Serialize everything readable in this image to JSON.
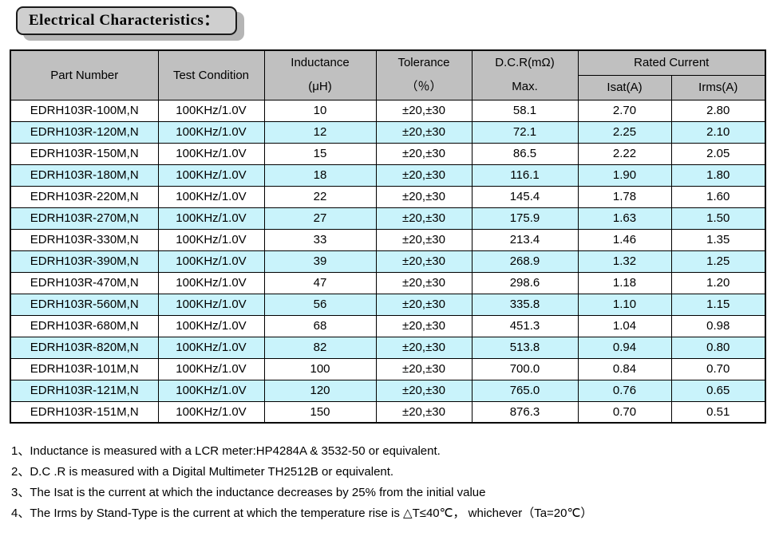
{
  "title": "Electrical Characteristics：",
  "table": {
    "header": {
      "part_number": "Part Number",
      "test_condition": "Test Condition",
      "inductance": [
        "Inductance",
        "(μH)"
      ],
      "tolerance": [
        "Tolerance",
        "（％）"
      ],
      "dcr": [
        "D.C.R(mΩ)",
        "Max."
      ],
      "rated_current": "Rated Current",
      "isat": "Isat(A)",
      "irms": "Irms(A)"
    },
    "column_keys": [
      "part",
      "cond",
      "ind",
      "tol",
      "dcr",
      "isat",
      "irms"
    ],
    "rows": [
      {
        "part": "EDRH103R-100M,N",
        "cond": "100KHz/1.0V",
        "ind": "10",
        "tol": "±20,±30",
        "dcr": "58.1",
        "isat": "2.70",
        "irms": "2.80"
      },
      {
        "part": "EDRH103R-120M,N",
        "cond": "100KHz/1.0V",
        "ind": "12",
        "tol": "±20,±30",
        "dcr": "72.1",
        "isat": "2.25",
        "irms": "2.10"
      },
      {
        "part": "EDRH103R-150M,N",
        "cond": "100KHz/1.0V",
        "ind": "15",
        "tol": "±20,±30",
        "dcr": "86.5",
        "isat": "2.22",
        "irms": "2.05"
      },
      {
        "part": "EDRH103R-180M,N",
        "cond": "100KHz/1.0V",
        "ind": "18",
        "tol": "±20,±30",
        "dcr": "116.1",
        "isat": "1.90",
        "irms": "1.80"
      },
      {
        "part": "EDRH103R-220M,N",
        "cond": "100KHz/1.0V",
        "ind": "22",
        "tol": "±20,±30",
        "dcr": "145.4",
        "isat": "1.78",
        "irms": "1.60"
      },
      {
        "part": "EDRH103R-270M,N",
        "cond": "100KHz/1.0V",
        "ind": "27",
        "tol": "±20,±30",
        "dcr": "175.9",
        "isat": "1.63",
        "irms": "1.50"
      },
      {
        "part": "EDRH103R-330M,N",
        "cond": "100KHz/1.0V",
        "ind": "33",
        "tol": "±20,±30",
        "dcr": "213.4",
        "isat": "1.46",
        "irms": "1.35"
      },
      {
        "part": "EDRH103R-390M,N",
        "cond": "100KHz/1.0V",
        "ind": "39",
        "tol": "±20,±30",
        "dcr": "268.9",
        "isat": "1.32",
        "irms": "1.25"
      },
      {
        "part": "EDRH103R-470M,N",
        "cond": "100KHz/1.0V",
        "ind": "47",
        "tol": "±20,±30",
        "dcr": "298.6",
        "isat": "1.18",
        "irms": "1.20"
      },
      {
        "part": "EDRH103R-560M,N",
        "cond": "100KHz/1.0V",
        "ind": "56",
        "tol": "±20,±30",
        "dcr": "335.8",
        "isat": "1.10",
        "irms": "1.15"
      },
      {
        "part": "EDRH103R-680M,N",
        "cond": "100KHz/1.0V",
        "ind": "68",
        "tol": "±20,±30",
        "dcr": "451.3",
        "isat": "1.04",
        "irms": "0.98"
      },
      {
        "part": "EDRH103R-820M,N",
        "cond": "100KHz/1.0V",
        "ind": "82",
        "tol": "±20,±30",
        "dcr": "513.8",
        "isat": "0.94",
        "irms": "0.80"
      },
      {
        "part": "EDRH103R-101M,N",
        "cond": "100KHz/1.0V",
        "ind": "100",
        "tol": "±20,±30",
        "dcr": "700.0",
        "isat": "0.84",
        "irms": "0.70"
      },
      {
        "part": "EDRH103R-121M,N",
        "cond": "100KHz/1.0V",
        "ind": "120",
        "tol": "±20,±30",
        "dcr": "765.0",
        "isat": "0.76",
        "irms": "0.65"
      },
      {
        "part": "EDRH103R-151M,N",
        "cond": "100KHz/1.0V",
        "ind": "150",
        "tol": "±20,±30",
        "dcr": "876.3",
        "isat": "0.70",
        "irms": "0.51"
      }
    ]
  },
  "notes": [
    "1、Inductance is measured with a LCR meter:HP4284A & 3532-50 or equivalent.",
    "2、D.C .R is measured with a Digital Multimeter TH2512B or equivalent.",
    "3、The Isat is the current at which the inductance decreases by 25% from the initial value",
    "4、The Irms by Stand-Type is the current at which the temperature rise is △T≤40℃， whichever（Ta=20℃）"
  ],
  "colors": {
    "header_bg": "#c0c0c0",
    "row_alt_bg": "#c9f3fb",
    "title_bg": "#cfcfcf",
    "title_shadow": "#b5b5b5",
    "border": "#000000"
  }
}
